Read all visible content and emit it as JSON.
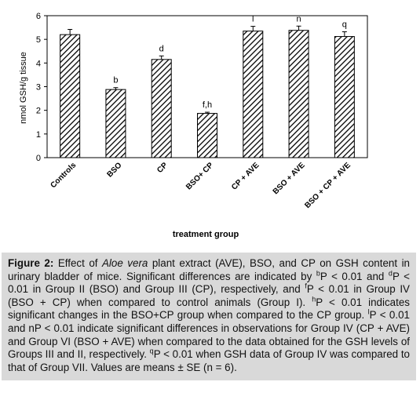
{
  "chart_data": {
    "type": "bar",
    "ylabel": "nmol GSH/g tissue",
    "xlabel": "treatment group",
    "ylim": [
      0,
      6
    ],
    "yticks": [
      0,
      1,
      2,
      3,
      4,
      5,
      6
    ],
    "categories": [
      "Controls",
      "BSO",
      "CP",
      "BSO+ CP",
      "CP + AVE",
      "BSO + AVE",
      "BSO + CP + AVE"
    ],
    "values": [
      5.2,
      2.88,
      4.15,
      1.87,
      5.35,
      5.38,
      5.12
    ],
    "errors": [
      0.22,
      0.08,
      0.15,
      0.05,
      0.2,
      0.18,
      0.2
    ],
    "annotations": [
      "",
      "b",
      "d",
      "f,h",
      "l",
      "n",
      "q"
    ],
    "grid": false,
    "bar_pattern": "diagonal-hatch",
    "bar_color": "#000000"
  },
  "caption": {
    "label": "Figure 2:",
    "t1": " Effect of ",
    "italic1": "Aloe vera",
    "t2": " plant extract (AVE), BSO, and CP on GSH content in urinary bladder of mice. Significant differences are indicated by ",
    "sup_b": "b",
    "t3": "P < 0.01 and ",
    "sup_d": "d",
    "t4": "P < 0.01 in Group II (BSO) and Group III (CP), respectively, and ",
    "sup_f": "f",
    "t5": "P < 0.01 in Group IV (BSO + CP) when compared to control animals (Group I). ",
    "sup_h": "h",
    "t6": "P < 0.01 indicates significant changes in the BSO+CP group when compared to the CP group. ",
    "sup_l": "l",
    "t7": "P < 0.01 and nP < 0.01 indicate significant differences in observations for Group IV (CP + AVE) and Group VI (BSO + AVE) when compared to the data obtained for the GSH levels of Groups III and II, respectively. ",
    "sup_q": "q",
    "t8": "P < 0.01 when GSH data of Group IV was compared to that of Group VII. Values are means ± SE (n = 6)."
  }
}
